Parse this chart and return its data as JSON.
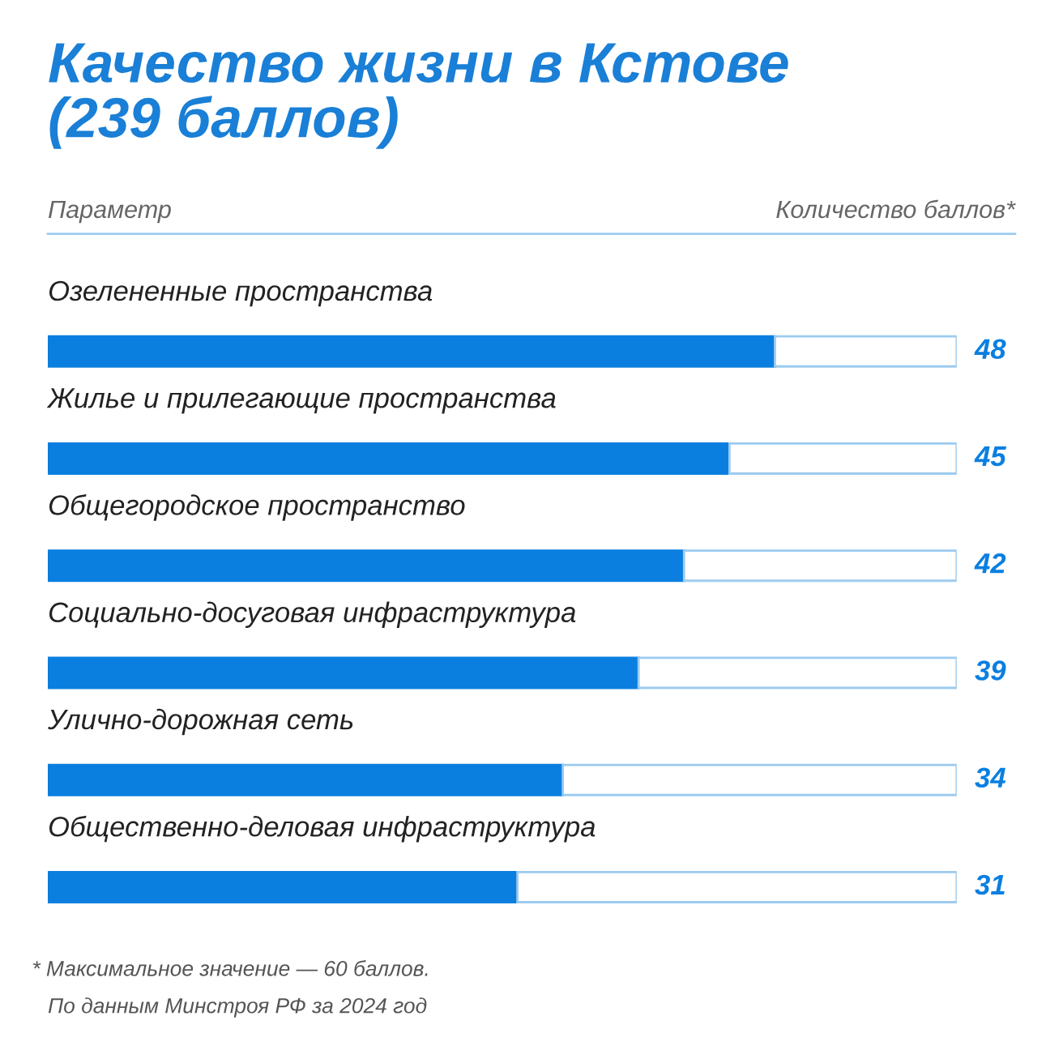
{
  "chart_data": {
    "type": "bar",
    "orientation": "horizontal",
    "stacked": true,
    "title": "Качество жизни в Кстове\n(239 баллов)",
    "xlabel": "Количество баллов*",
    "ylabel": "Параметр",
    "categories": [
      "Озелененные пространства",
      "Жилье и прилегающие пространства",
      "Общегородское пространство",
      "Социально-досуговая инфраструктура",
      "Улично-дорожная сеть",
      "Общественно-деловая инфраструктура"
    ],
    "series": [
      {
        "color": "#0a7fe0",
        "values": [
          48,
          45,
          42,
          39,
          34,
          31
        ],
        "value_labels": [
          "48",
          "45",
          "42",
          "39",
          "34",
          "31"
        ]
      },
      {
        "color": "#ffffff",
        "values": [
          12,
          15,
          18,
          21,
          26,
          29
        ]
      }
    ],
    "annotations": [
      "* Максимальное значение — 60 баллов.",
      "По данным Минстроя РФ за 2024 год"
    ]
  }
}
